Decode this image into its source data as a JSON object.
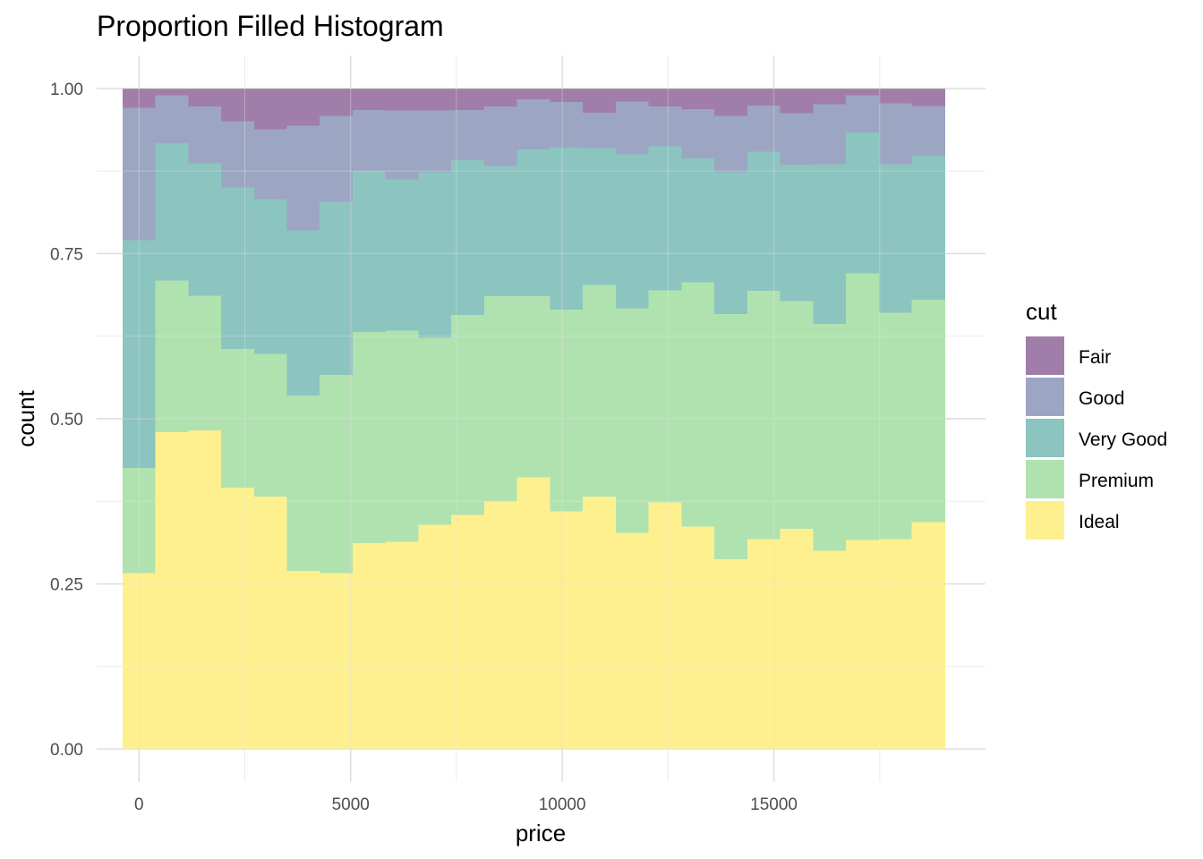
{
  "chart_data": {
    "type": "bar",
    "title": "Proportion Filled Histogram",
    "xlabel": "price",
    "ylabel": "count",
    "xlim": [
      -1000,
      20000
    ],
    "ylim": [
      -0.05,
      1.05
    ],
    "x_ticks": [
      0,
      5000,
      10000,
      15000
    ],
    "x_tick_labels": [
      "0",
      "5000",
      "10000",
      "15000"
    ],
    "y_ticks": [
      0,
      0.25,
      0.5,
      0.75,
      1
    ],
    "y_tick_labels": [
      "0.00",
      "0.25",
      "0.50",
      "0.75",
      "1.00"
    ],
    "bin_edges": [
      -391,
      386,
      1163,
      1940,
      2717,
      3494,
      4271,
      5048,
      5825,
      6602,
      7379,
      8156,
      8933,
      9710,
      10487,
      11264,
      12041,
      12818,
      13595,
      14372,
      15149,
      15926,
      16703,
      17480,
      18257,
      19034
    ],
    "grid": true,
    "legend": {
      "title": "cut",
      "position": "right",
      "entries": [
        "Fair",
        "Good",
        "Very Good",
        "Premium",
        "Ideal"
      ]
    },
    "colors": {
      "Fair": "#a07ea9",
      "Good": "#9ca6c3",
      "Very Good": "#8cc4c0",
      "Premium": "#b0e2b0",
      "Ideal": "#fef08f"
    },
    "stack_order": [
      "Ideal",
      "Premium",
      "Very Good",
      "Good",
      "Fair"
    ],
    "series": [
      {
        "name": "Ideal",
        "values": [
          0.267,
          0.48,
          0.483,
          0.396,
          0.383,
          0.27,
          0.267,
          0.312,
          0.314,
          0.34,
          0.355,
          0.375,
          0.412,
          0.36,
          0.383,
          0.328,
          0.374,
          0.337,
          0.288,
          0.318,
          0.334,
          0.301,
          0.317,
          0.318,
          0.344
        ]
      },
      {
        "name": "Premium",
        "values": [
          0.159,
          0.23,
          0.204,
          0.21,
          0.216,
          0.266,
          0.3,
          0.32,
          0.32,
          0.283,
          0.303,
          0.311,
          0.274,
          0.306,
          0.32,
          0.34,
          0.321,
          0.37,
          0.371,
          0.376,
          0.345,
          0.343,
          0.404,
          0.343,
          0.337
        ]
      },
      {
        "name": "Very Good",
        "values": [
          0.345,
          0.208,
          0.2,
          0.245,
          0.234,
          0.25,
          0.262,
          0.244,
          0.229,
          0.251,
          0.234,
          0.197,
          0.222,
          0.245,
          0.207,
          0.233,
          0.218,
          0.188,
          0.215,
          0.211,
          0.206,
          0.242,
          0.213,
          0.225,
          0.218
        ]
      },
      {
        "name": "Good",
        "values": [
          0.2,
          0.072,
          0.086,
          0.1,
          0.106,
          0.158,
          0.13,
          0.092,
          0.104,
          0.093,
          0.076,
          0.09,
          0.076,
          0.069,
          0.054,
          0.08,
          0.06,
          0.074,
          0.085,
          0.07,
          0.078,
          0.091,
          0.056,
          0.092,
          0.075
        ]
      },
      {
        "name": "Fair",
        "values": [
          0.029,
          0.01,
          0.027,
          0.049,
          0.061,
          0.056,
          0.041,
          0.032,
          0.033,
          0.033,
          0.032,
          0.027,
          0.016,
          0.02,
          0.036,
          0.019,
          0.027,
          0.031,
          0.041,
          0.025,
          0.037,
          0.023,
          0.01,
          0.022,
          0.026
        ]
      }
    ]
  }
}
